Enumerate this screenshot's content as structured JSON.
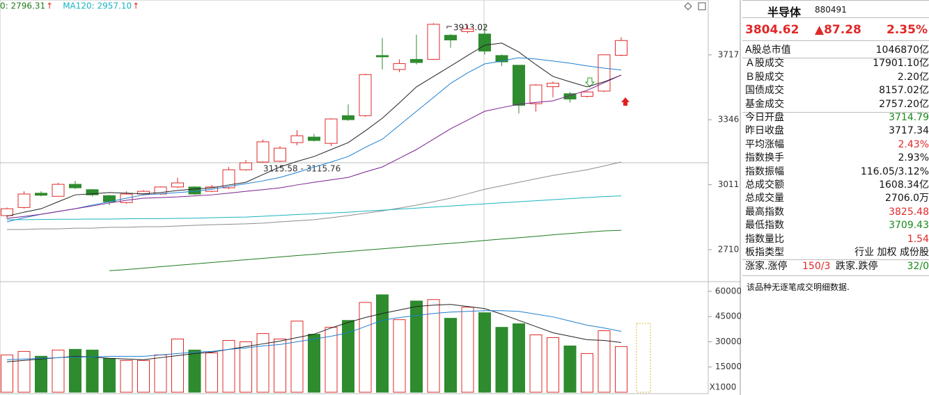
{
  "chart_data": [
    {
      "type": "candlestick",
      "log_scale": true,
      "ylim": [
        2573,
        4063
      ],
      "yticks": [
        2710,
        3011,
        3346,
        3717
      ],
      "up_color": "#e02828",
      "down_color": "#2e8b2e",
      "legend": [
        {
          "text": "0: 2796.31",
          "arrow": "↑",
          "color": "#1f7a1f"
        },
        {
          "text": "MA120: 2957.10",
          "arrow": "↑",
          "color": "#19b3c0"
        }
      ],
      "annotations": [
        "3913.02",
        "3115.58 - 3115.76"
      ],
      "open": [
        2864,
        2902,
        2970,
        2955,
        3013,
        2987,
        2958,
        2925,
        2966,
        2966,
        3000,
        3000,
        2979,
        2996,
        3085,
        3124,
        3128,
        3224,
        3253,
        3220,
        3368,
        3368,
        3713,
        3630,
        3690,
        3690,
        3837,
        3860,
        3845,
        3713,
        3655,
        3434,
        3530,
        3490,
        3475,
        3505,
        3714.79
      ],
      "high": [
        2902,
        2979,
        2979,
        3020,
        3030,
        2990,
        2962,
        2979,
        2985,
        3003,
        3045,
        3003,
        3010,
        3099,
        3134,
        3240,
        3206,
        3290,
        3270,
        3354,
        3430,
        3605,
        3820,
        3690,
        3840,
        3913.02,
        3845,
        3900,
        3900,
        3720,
        3655,
        3545,
        3560,
        3500,
        3505,
        3717.34,
        3825.48
      ],
      "low": [
        2850,
        2896,
        2955,
        2955,
        2990,
        2955,
        2913,
        2920,
        2960,
        2962,
        2996,
        2962,
        2975,
        2990,
        3080,
        3120,
        3124,
        3210,
        3230,
        3206,
        3340,
        3362,
        3630,
        3615,
        3660,
        3690,
        3760,
        3850,
        3720,
        3650,
        3380,
        3390,
        3470,
        3440,
        3468,
        3500,
        3709.43
      ],
      "close": [
        2896,
        2966,
        2960,
        3013,
        2996,
        2962,
        2929,
        2966,
        2979,
        3000,
        3020,
        2966,
        3000,
        3085,
        3120,
        3228,
        3195,
        3260,
        3235,
        3350,
        3346,
        3600,
        3705,
        3665,
        3671,
        3906,
        3808,
        3876,
        3740,
        3675,
        3425,
        3540,
        3550,
        3460,
        3500,
        3717.34,
        3804.62
      ],
      "series": [
        {
          "color": "#222222",
          "values": [
            2861,
            2880,
            2896,
            2929,
            2962,
            2967,
            2973,
            2970,
            2967,
            2973,
            2983,
            2990,
            2996,
            3010,
            3023,
            3061,
            3099,
            3127,
            3152,
            3188,
            3224,
            3286,
            3354,
            3439,
            3529,
            3589,
            3650,
            3713,
            3776,
            3789,
            3734,
            3659,
            3589,
            3558,
            3529,
            3558,
            3597
          ]
        },
        {
          "color": "#1e7fd0",
          "values": [
            2835,
            2854,
            2870,
            2883,
            2896,
            2913,
            2929,
            2946,
            2962,
            2967,
            2973,
            2979,
            2989,
            3003,
            3016,
            3030,
            3047,
            3071,
            3099,
            3124,
            3152,
            3199,
            3242,
            3316,
            3392,
            3469,
            3549,
            3610,
            3663,
            3680,
            3700,
            3692,
            3680,
            3667,
            3651,
            3638,
            3627
          ]
        },
        {
          "color": "#7a1f8f",
          "values": [
            2851,
            2860,
            2870,
            2883,
            2896,
            2909,
            2923,
            2936,
            2946,
            2949,
            2952,
            2957,
            2962,
            2970,
            2979,
            2987,
            2996,
            3010,
            3023,
            3035,
            3047,
            3074,
            3099,
            3143,
            3188,
            3242,
            3297,
            3344,
            3392,
            3412,
            3431,
            3441,
            3450,
            3480,
            3509,
            3553,
            3597
          ]
        },
        {
          "color": "#8c8c8c",
          "values": [
            2800,
            2800,
            2803,
            2803,
            2806,
            2806,
            2810,
            2810,
            2813,
            2813,
            2816,
            2819,
            2822,
            2824,
            2826,
            2829,
            2835,
            2840,
            2845,
            2854,
            2864,
            2875,
            2886,
            2899,
            2913,
            2929,
            2946,
            2967,
            2989,
            3006,
            3023,
            3040,
            3057,
            3071,
            3085,
            3104,
            3124
          ]
        },
        {
          "color": "#19b3c0",
          "values": [
            2845,
            2845,
            2846,
            2847,
            2847,
            2848,
            2848,
            2849,
            2850,
            2850,
            2851,
            2852,
            2854,
            2856,
            2857,
            2861,
            2865,
            2869,
            2872,
            2876,
            2880,
            2885,
            2889,
            2894,
            2899,
            2904,
            2909,
            2914,
            2919,
            2924,
            2929,
            2934,
            2939,
            2944,
            2949,
            2954,
            2957.1
          ]
        },
        {
          "color": "#1f7a1f",
          "values": [
            null,
            null,
            null,
            null,
            null,
            null,
            2619,
            2624,
            2630,
            2636,
            2642,
            2648,
            2654,
            2660,
            2666,
            2672,
            2678,
            2684,
            2690,
            2696,
            2702,
            2708,
            2714,
            2720,
            2726,
            2732,
            2738,
            2744,
            2751,
            2757,
            2763,
            2769,
            2776,
            2782,
            2788,
            2794,
            2796.31
          ]
        }
      ]
    },
    {
      "type": "volume",
      "ylim": [
        0,
        65760
      ],
      "yticks": [
        15000,
        30000,
        45000,
        60000
      ],
      "unit": "X1000",
      "values": [
        22200,
        24250,
        21400,
        25100,
        25500,
        25100,
        20100,
        18900,
        18900,
        22200,
        31650,
        25100,
        23400,
        30800,
        30000,
        34900,
        31650,
        42300,
        34500,
        38600,
        42700,
        53400,
        57950,
        43150,
        54250,
        55100,
        43980,
        50550,
        47270,
        38600,
        40700,
        34100,
        32470,
        27540,
        23000,
        36580,
        27130
      ],
      "series": [
        {
          "color": "#222222",
          "values": [
            18080,
            18900,
            19730,
            20550,
            21370,
            20960,
            20140,
            19730,
            19320,
            20550,
            21780,
            23020,
            23840,
            25480,
            27130,
            28770,
            30410,
            32470,
            34520,
            38220,
            41510,
            44390,
            46850,
            48910,
            50960,
            51790,
            52200,
            50960,
            49730,
            46440,
            42740,
            39050,
            35350,
            33290,
            31240,
            30820,
            29590
          ]
        },
        {
          "color": "#1e7fd0",
          "values": [
            19320,
            19730,
            20140,
            20550,
            20960,
            20960,
            21370,
            21370,
            21370,
            22190,
            23020,
            23840,
            24250,
            25480,
            26300,
            27540,
            28360,
            30000,
            31650,
            33290,
            35350,
            39050,
            42740,
            44390,
            45620,
            46850,
            47680,
            48090,
            48500,
            48500,
            48090,
            46440,
            44800,
            42330,
            39870,
            38220,
            36170
          ]
        }
      ]
    }
  ],
  "panel": {
    "title": "半导体",
    "code": "880491",
    "price": "3804.62",
    "change": "▲87.28",
    "percent": "2.35%",
    "rows": [
      {
        "label": "A股总市值",
        "value": "1046870亿"
      },
      {
        "label": "Ａ股成交",
        "value": "17901.10亿"
      },
      {
        "label": "Ｂ股成交",
        "value": "2.20亿"
      },
      {
        "label": "国债成交",
        "value": "8157.02亿"
      },
      {
        "label": "基金成交",
        "value": "2757.20亿"
      },
      {
        "label": "今日开盘",
        "value": "3714.79",
        "color": "#1a8a1a"
      },
      {
        "label": "昨日收盘",
        "value": "3717.34"
      },
      {
        "label": "平均涨幅",
        "value": "2.43%",
        "color": "#e02828"
      },
      {
        "label": "指数换手",
        "value": "2.93%"
      },
      {
        "label": "指数振幅",
        "value": "116.05/3.12%"
      },
      {
        "label": "总成交额",
        "value": "1608.34亿"
      },
      {
        "label": "总成交量",
        "value": "2706.0万"
      },
      {
        "label": "最高指数",
        "value": "3825.48",
        "color": "#e02828"
      },
      {
        "label": "最低指数",
        "value": "3709.43",
        "color": "#1a8a1a"
      },
      {
        "label": "指数量比",
        "value": "1.54",
        "color": "#e02828"
      },
      {
        "label": "板指类型",
        "value": "行业 加权 成份股"
      }
    ],
    "advance_label": "涨家.涨停",
    "advance": "150/3",
    "decline_label": "跌家.跌停",
    "decline": "32/0",
    "note": "该品种无逐笔成交明细数据."
  }
}
